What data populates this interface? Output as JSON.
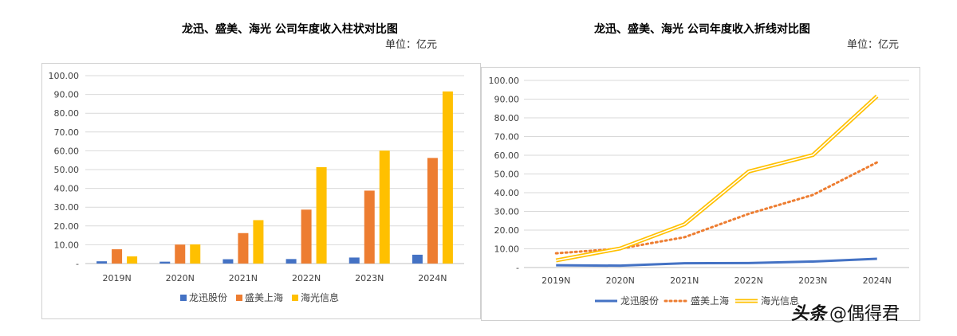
{
  "bar_panel": {
    "title": "龙迅、盛美、海光 公司年度收入柱状对比图",
    "unit": "单位：亿元"
  },
  "line_panel": {
    "title": "龙迅、盛美、海光 公司年度收入折线对比图",
    "unit": "单位：亿元"
  },
  "watermark": {
    "logo": "头条",
    "text": "@偶得君"
  },
  "chart_data": [
    {
      "type": "bar",
      "title": "龙迅、盛美、海光 公司年度收入柱状对比图",
      "categories": [
        "2019N",
        "2020N",
        "2021N",
        "2022N",
        "2023N",
        "2024N"
      ],
      "series": [
        {
          "name": "龙迅股份",
          "color": "#4472C4",
          "values": [
            1.2,
            1.0,
            2.3,
            2.4,
            3.2,
            4.7
          ]
        },
        {
          "name": "盛美上海",
          "color": "#ED7D31",
          "values": [
            7.6,
            10.1,
            16.2,
            28.7,
            38.8,
            56.2
          ]
        },
        {
          "name": "海光信息",
          "color": "#FFC000",
          "values": [
            3.8,
            10.2,
            23.1,
            51.3,
            60.1,
            91.6
          ]
        }
      ],
      "ylim": [
        0,
        100
      ],
      "yticks": [
        "-",
        "10.00",
        "20.00",
        "30.00",
        "40.00",
        "50.00",
        "60.00",
        "70.00",
        "80.00",
        "90.00",
        "100.00"
      ],
      "grid": true,
      "legend": "bottom"
    },
    {
      "type": "line",
      "title": "龙迅、盛美、海光 公司年度收入折线对比图",
      "categories": [
        "2019N",
        "2020N",
        "2021N",
        "2022N",
        "2023N",
        "2024N"
      ],
      "series": [
        {
          "name": "龙迅股份",
          "color": "#4472C4",
          "style": "solid",
          "values": [
            1.2,
            1.0,
            2.3,
            2.4,
            3.2,
            4.7
          ]
        },
        {
          "name": "盛美上海",
          "color": "#ED7D31",
          "style": "dotted",
          "values": [
            7.6,
            10.1,
            16.2,
            28.7,
            38.8,
            56.2
          ]
        },
        {
          "name": "海光信息",
          "color": "#FFC000",
          "style": "double",
          "values": [
            3.8,
            10.2,
            23.1,
            51.3,
            60.1,
            91.6
          ]
        }
      ],
      "ylim": [
        0,
        100
      ],
      "yticks": [
        "-",
        "10.00",
        "20.00",
        "30.00",
        "40.00",
        "50.00",
        "60.00",
        "70.00",
        "80.00",
        "90.00",
        "100.00"
      ],
      "grid": true,
      "legend": "bottom"
    }
  ]
}
